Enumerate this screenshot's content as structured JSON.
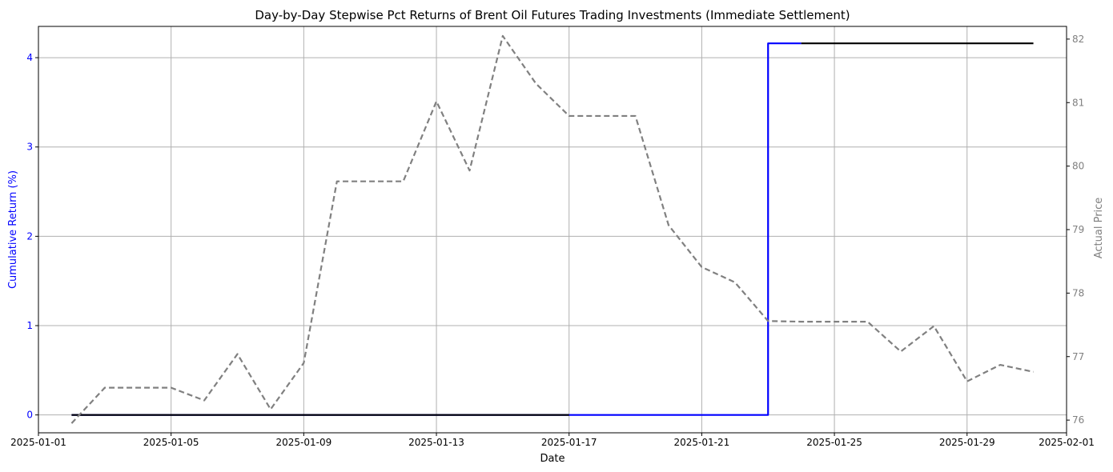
{
  "colors": {
    "return_line": "#0000ff",
    "cash_line": "#000000",
    "price_line": "#808080",
    "grid": "#b0b0b0",
    "left_axis_text": "#0000ff",
    "right_axis_text": "#808080"
  },
  "chart_data": {
    "type": "line",
    "title": "Day-by-Day Stepwise Pct Returns of Brent Oil Futures Trading Investments (Immediate Settlement)",
    "xlabel": "Date",
    "ylabel_left": "Cumulative Return (%)",
    "ylabel_right": "Actual Price",
    "xlim": [
      "2025-01-01",
      "2025-02-01"
    ],
    "x_ticks": [
      "2025-01-01",
      "2025-01-05",
      "2025-01-09",
      "2025-01-13",
      "2025-01-17",
      "2025-01-21",
      "2025-01-25",
      "2025-01-29",
      "2025-02-01"
    ],
    "ylim_left": [
      -0.2,
      4.35
    ],
    "y_ticks_left": [
      0,
      1,
      2,
      3,
      4
    ],
    "ylim_right": [
      75.8,
      82.2
    ],
    "y_ticks_right": [
      76,
      77,
      78,
      79,
      80,
      81,
      82
    ],
    "grid": true,
    "series": [
      {
        "axis": "left",
        "style": "solid",
        "color": "blue",
        "x": [
          "2025-01-02",
          "2025-01-23",
          "2025-01-23",
          "2025-01-24"
        ],
        "y": [
          0,
          0,
          4.16,
          4.16
        ]
      },
      {
        "axis": "left",
        "style": "solid",
        "color": "black",
        "x": [
          "2025-01-02",
          "2025-01-17",
          "2025-01-24",
          "2025-01-31"
        ],
        "y": [
          0,
          0,
          4.16,
          4.16
        ],
        "segments": [
          [
            0,
            1
          ],
          [
            2,
            3
          ]
        ]
      },
      {
        "axis": "right",
        "style": "dashed",
        "color": "gray",
        "x": [
          "2025-01-02",
          "2025-01-03",
          "2025-01-04",
          "2025-01-05",
          "2025-01-06",
          "2025-01-07",
          "2025-01-08",
          "2025-01-09",
          "2025-01-10",
          "2025-01-11",
          "2025-01-12",
          "2025-01-13",
          "2025-01-14",
          "2025-01-15",
          "2025-01-16",
          "2025-01-17",
          "2025-01-18",
          "2025-01-19",
          "2025-01-20",
          "2025-01-21",
          "2025-01-22",
          "2025-01-23",
          "2025-01-24",
          "2025-01-25",
          "2025-01-26",
          "2025-01-27",
          "2025-01-28",
          "2025-01-29",
          "2025-01-30",
          "2025-01-31"
        ],
        "y": [
          75.95,
          76.51,
          76.51,
          76.51,
          76.31,
          77.04,
          76.17,
          76.9,
          79.76,
          79.76,
          79.76,
          81.02,
          79.93,
          82.05,
          81.3,
          80.79,
          80.79,
          80.79,
          79.07,
          78.41,
          78.17,
          77.56,
          77.55,
          77.55,
          77.55,
          77.08,
          77.48,
          76.61,
          76.87,
          76.76
        ]
      }
    ]
  }
}
